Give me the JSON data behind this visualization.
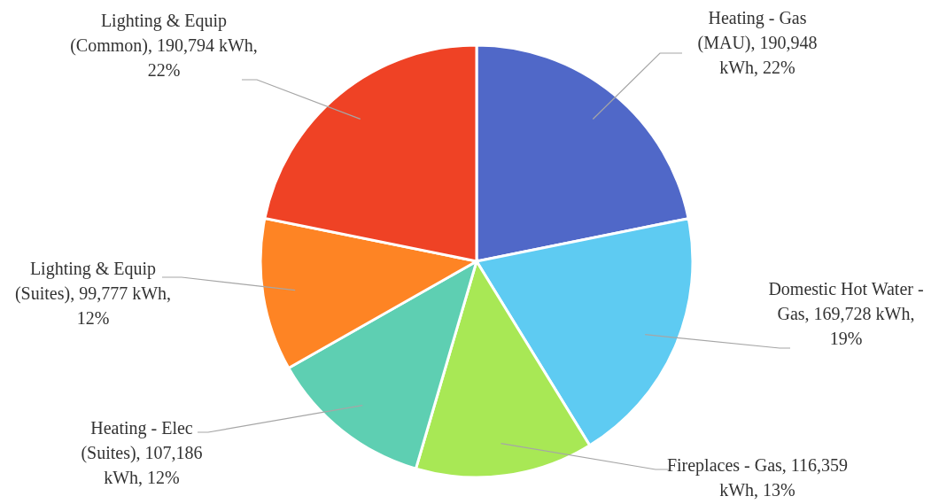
{
  "chart_data": {
    "type": "pie",
    "categories": [
      "Heating - Gas (MAU)",
      "Domestic Hot Water - Gas",
      "Fireplaces - Gas",
      "Heating - Elec (Suites)",
      "Lighting & Equip (Suites)",
      "Lighting & Equip (Common)"
    ],
    "values": [
      190948,
      169728,
      116359,
      107186,
      99777,
      190794
    ],
    "colors": [
      "#5068c8",
      "#5ecbf2",
      "#a8e855",
      "#5ecfb2",
      "#fe8424",
      "#ef4225"
    ],
    "value_labels": [
      "190,948 kWh, 22%",
      "169,728 kWh, 19%",
      "116,359 kWh, 13%",
      "107,186 kWh, 12%",
      "99,777 kWh, 12%",
      "190,794 kWh, 22%"
    ]
  }
}
